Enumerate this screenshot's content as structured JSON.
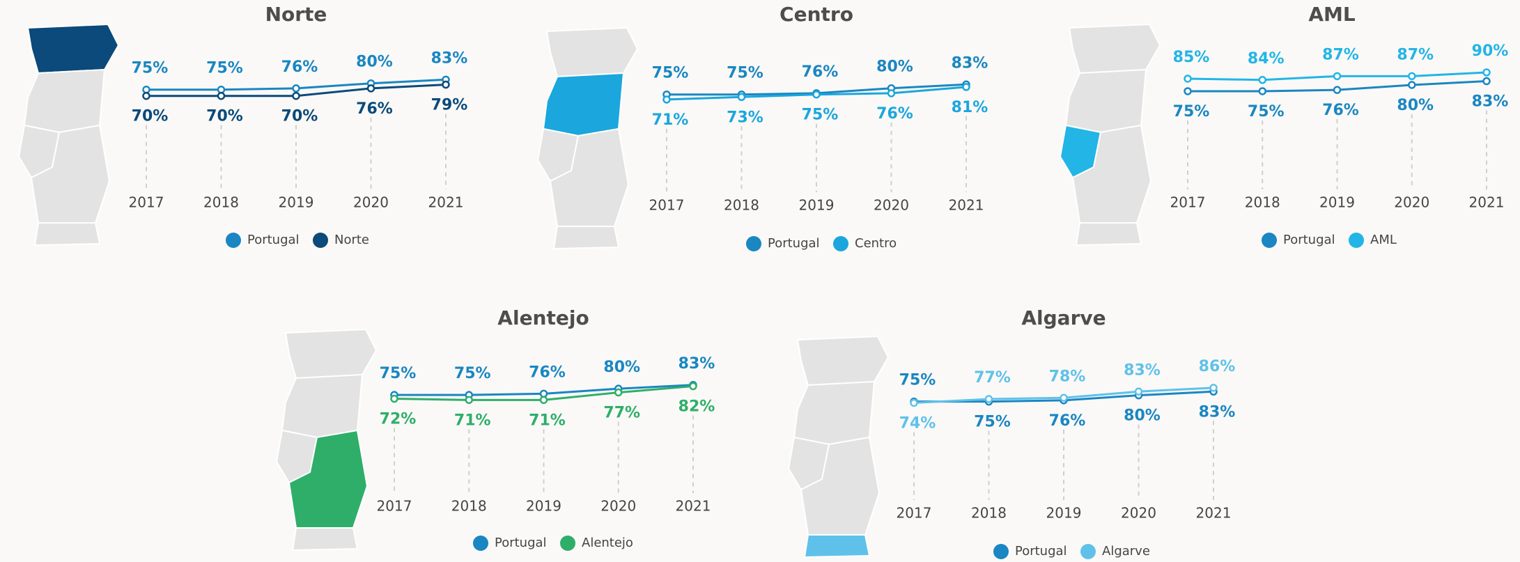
{
  "chart_data": [
    {
      "type": "line",
      "title": "Norte",
      "categories": [
        "2017",
        "2018",
        "2019",
        "2020",
        "2021"
      ],
      "series": [
        {
          "name": "Portugal",
          "color": "#1a86c2",
          "values": [
            75,
            75,
            76,
            80,
            83
          ],
          "value_labels": [
            "75%",
            "75%",
            "76%",
            "80%",
            "83%"
          ]
        },
        {
          "name": "Norte",
          "color": "#0b4a7a",
          "values": [
            70,
            70,
            70,
            76,
            79
          ],
          "value_labels": [
            "70%",
            "70%",
            "70%",
            "76%",
            "79%"
          ]
        }
      ]
    },
    {
      "type": "line",
      "title": "Centro",
      "categories": [
        "2017",
        "2018",
        "2019",
        "2020",
        "2021"
      ],
      "series": [
        {
          "name": "Portugal",
          "color": "#1a86c2",
          "values": [
            75,
            75,
            76,
            80,
            83
          ],
          "value_labels": [
            "75%",
            "75%",
            "76%",
            "80%",
            "83%"
          ]
        },
        {
          "name": "Centro",
          "color": "#1ba6dd",
          "values": [
            71,
            73,
            75,
            76,
            81
          ],
          "value_labels": [
            "71%",
            "73%",
            "75%",
            "76%",
            "81%"
          ]
        }
      ]
    },
    {
      "type": "line",
      "title": "AML",
      "categories": [
        "2017",
        "2018",
        "2019",
        "2020",
        "2021"
      ],
      "series": [
        {
          "name": "Portugal",
          "color": "#1a86c2",
          "values": [
            75,
            75,
            76,
            80,
            83
          ],
          "value_labels": [
            "75%",
            "75%",
            "76%",
            "80%",
            "83%"
          ]
        },
        {
          "name": "AML",
          "color": "#22b5e6",
          "values": [
            85,
            84,
            87,
            87,
            90
          ],
          "value_labels": [
            "85%",
            "84%",
            "87%",
            "87%",
            "90%"
          ]
        }
      ]
    },
    {
      "type": "line",
      "title": "Alentejo",
      "categories": [
        "2017",
        "2018",
        "2019",
        "2020",
        "2021"
      ],
      "series": [
        {
          "name": "Portugal",
          "color": "#1a86c2",
          "values": [
            75,
            75,
            76,
            80,
            83
          ],
          "value_labels": [
            "75%",
            "75%",
            "76%",
            "80%",
            "83%"
          ]
        },
        {
          "name": "Alentejo",
          "color": "#2fae69",
          "values": [
            72,
            71,
            71,
            77,
            82
          ],
          "value_labels": [
            "72%",
            "71%",
            "71%",
            "77%",
            "82%"
          ]
        }
      ]
    },
    {
      "type": "line",
      "title": "Algarve",
      "categories": [
        "2017",
        "2018",
        "2019",
        "2020",
        "2021"
      ],
      "series": [
        {
          "name": "Portugal",
          "color": "#1a86c2",
          "values": [
            75,
            75,
            76,
            80,
            83
          ],
          "value_labels": [
            "75%",
            "75%",
            "76%",
            "80%",
            "83%"
          ]
        },
        {
          "name": "Algarve",
          "color": "#5fc1ea",
          "values": [
            74,
            77,
            78,
            83,
            86
          ],
          "value_labels": [
            "74%",
            "77%",
            "78%",
            "83%",
            "86%"
          ]
        }
      ]
    }
  ]
}
